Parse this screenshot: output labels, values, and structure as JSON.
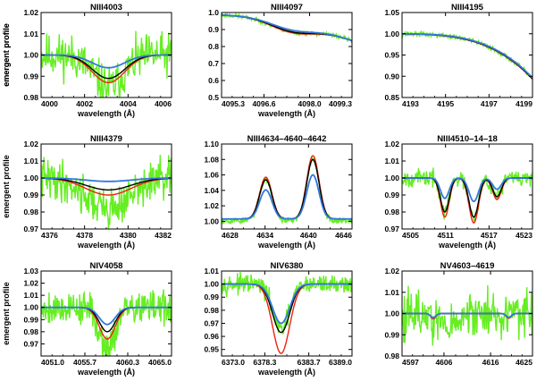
{
  "colors": {
    "observed": "#66ee22",
    "red": "#ee2211",
    "black": "#000000",
    "blue": "#3377dd"
  },
  "chart_data": [
    {
      "type": "line",
      "title": "NIII4003",
      "xlabel": "wavelength (Å)",
      "ylabel": "emergent profile",
      "xlim": [
        4000,
        4006
      ],
      "ylim": [
        0.98,
        1.02
      ],
      "xticks": [
        4000,
        4002,
        4004,
        4006
      ],
      "xtick_labels": [
        "4000",
        "4002",
        "4004",
        "4006"
      ],
      "yticks": [
        0.98,
        0.99,
        1.0,
        1.01,
        1.02
      ],
      "ytick_labels": [
        "0.98",
        "0.99",
        "1.00",
        "1.01",
        "1.02"
      ],
      "model": {
        "kind": "absorption",
        "lines": [
          {
            "center": 4003.1,
            "width": 0.75
          }
        ],
        "depths": {
          "red": 0.013,
          "black": 0.011,
          "blue": 0.006
        }
      },
      "observed": {
        "noise": 0.005,
        "lines": [
          {
            "center": 4003.1,
            "width": 0.7,
            "depth": 0.015
          }
        ],
        "seed": 11
      }
    },
    {
      "type": "line",
      "title": "NIII4097",
      "xlabel": "wavelength (Å)",
      "ylabel": "emergent profile",
      "xlim": [
        4095.3,
        4099.3
      ],
      "ylim": [
        0.5,
        1.0
      ],
      "xticks": [
        4095.3,
        4096.6,
        4098.0,
        4099.3
      ],
      "xtick_labels": [
        "4095.3",
        "4096.6",
        "4098.0",
        "4099.3"
      ],
      "yticks": [
        0.5,
        0.6,
        0.7,
        0.8,
        0.9,
        1.0
      ],
      "ytick_labels": [
        "0.5",
        "0.6",
        "0.7",
        "0.8",
        "0.9",
        "1.0"
      ],
      "model": {
        "kind": "wing",
        "start": 0.985,
        "end": 0.835,
        "dip_center": 4097.45,
        "dip_width": 0.65,
        "depths": {
          "red": 0.055,
          "black": 0.05,
          "blue": 0.04
        }
      },
      "observed": {
        "noise": 0.006,
        "lines": [
          {
            "center": 4097.45,
            "width": 0.6,
            "depth": 0.06
          }
        ],
        "seed": 23
      }
    },
    {
      "type": "line",
      "title": "NIII4195",
      "xlabel": "",
      "ylabel": "",
      "xlim": [
        4193,
        4199
      ],
      "ylim": [
        0.85,
        1.05
      ],
      "xticks": [
        4193,
        4195,
        4197,
        4199
      ],
      "xtick_labels": [
        "4193",
        "4195",
        "4197",
        "4199"
      ],
      "yticks": [
        0.85,
        0.9,
        0.95,
        1.0,
        1.05
      ],
      "ytick_labels": [
        "0.85",
        "0.90",
        "0.95",
        "1.00",
        "1.05"
      ],
      "model": {
        "kind": "edge",
        "start": 1.0,
        "end": 0.9,
        "offsets": {
          "red": -0.003,
          "black": -0.002,
          "blue": 0.0
        }
      },
      "observed": {
        "noise": 0.003,
        "lines": [],
        "seed": 37
      }
    },
    {
      "type": "line",
      "title": "NIII4379",
      "xlabel": "wavelength (Å)",
      "ylabel": "emergent profile",
      "xlim": [
        4376,
        4382
      ],
      "ylim": [
        0.97,
        1.02
      ],
      "xticks": [
        4376,
        4378,
        4380,
        4382
      ],
      "xtick_labels": [
        "4376",
        "4378",
        "4380",
        "4382"
      ],
      "yticks": [
        0.97,
        0.98,
        0.99,
        1.0,
        1.01,
        1.02
      ],
      "ytick_labels": [
        "0.97",
        "0.98",
        "0.99",
        "1.00",
        "1.01",
        "1.02"
      ],
      "model": {
        "kind": "absorption",
        "lines": [
          {
            "center": 4379.1,
            "width": 1.05
          }
        ],
        "depths": {
          "red": 0.01,
          "black": 0.007,
          "blue": 0.002
        }
      },
      "observed": {
        "noise": 0.006,
        "lines": [
          {
            "center": 4379.1,
            "width": 1.0,
            "depth": 0.018
          }
        ],
        "seed": 41
      }
    },
    {
      "type": "line",
      "title": "NIII4634–4640–4642",
      "xlabel": "wavelength (Å)",
      "ylabel": "",
      "xlim": [
        4628,
        4646
      ],
      "ylim": [
        0.99,
        1.1
      ],
      "xticks": [
        4628,
        4634,
        4640,
        4646
      ],
      "xtick_labels": [
        "4628",
        "4634",
        "4640",
        "4646"
      ],
      "yticks": [
        1.0,
        1.02,
        1.04,
        1.06,
        1.08,
        1.1
      ],
      "ytick_labels": [
        "1.00",
        "1.02",
        "1.04",
        "1.06",
        "1.08",
        "1.10"
      ],
      "model": {
        "kind": "emission",
        "lines": [
          {
            "center": 4634.1,
            "width": 0.85,
            "scale": 0.66
          },
          {
            "center": 4640.6,
            "width": 0.85,
            "scale": 1.0
          }
        ],
        "continuum": 1.003,
        "heights": {
          "red": 0.082,
          "black": 0.077,
          "blue": 0.057
        }
      },
      "observed": {
        "noise": 0.002,
        "lines": [
          {
            "center": 4634.1,
            "width": 0.85,
            "depth": -0.053
          },
          {
            "center": 4640.6,
            "width": 0.85,
            "depth": -0.08
          }
        ],
        "seed": 53
      }
    },
    {
      "type": "line",
      "title": "NIII4510–14–18",
      "xlabel": "wavelength (Å)",
      "ylabel": "",
      "xlim": [
        4505,
        4523
      ],
      "ylim": [
        0.97,
        1.02
      ],
      "xticks": [
        4505,
        4511,
        4517,
        4523
      ],
      "xtick_labels": [
        "4505",
        "4511",
        "4517",
        "4523"
      ],
      "yticks": [
        0.97,
        0.98,
        0.99,
        1.0,
        1.01,
        1.02
      ],
      "ytick_labels": [
        "0.97",
        "0.98",
        "0.99",
        "1.00",
        "1.01",
        "1.02"
      ],
      "model": {
        "kind": "absorption",
        "lines": [
          {
            "center": 4510.9,
            "width": 0.6,
            "scale": 1.0
          },
          {
            "center": 4514.9,
            "width": 0.65,
            "scale": 1.15
          },
          {
            "center": 4518.1,
            "width": 0.6,
            "scale": 0.55
          }
        ],
        "depths": {
          "red": 0.023,
          "black": 0.02,
          "blue": 0.012
        }
      },
      "observed": {
        "noise": 0.0025,
        "lines": [
          {
            "center": 4510.9,
            "width": 0.6,
            "depth": 0.02
          },
          {
            "center": 4514.9,
            "width": 0.65,
            "depth": 0.022
          },
          {
            "center": 4518.1,
            "width": 0.6,
            "depth": 0.01
          }
        ],
        "seed": 67
      }
    },
    {
      "type": "line",
      "title": "NIV4058",
      "xlabel": "wavelength (Å)",
      "ylabel": "emergent profile",
      "xlim": [
        4051.0,
        4065.0
      ],
      "ylim": [
        0.96,
        1.03
      ],
      "xticks": [
        4051.0,
        4055.7,
        4060.3,
        4065.0
      ],
      "xtick_labels": [
        "4051.0",
        "4055.7",
        "4060.3",
        "4065.0"
      ],
      "yticks": [
        0.97,
        0.98,
        0.99,
        1.0,
        1.01,
        1.02,
        1.03
      ],
      "ytick_labels": [
        "0.97",
        "0.98",
        "0.99",
        "1.00",
        "1.01",
        "1.02",
        "1.03"
      ],
      "model": {
        "kind": "absorption",
        "lines": [
          {
            "center": 4058.1,
            "width": 0.85
          }
        ],
        "depths": {
          "red": 0.026,
          "black": 0.02,
          "blue": 0.014
        }
      },
      "observed": {
        "noise": 0.007,
        "lines": [
          {
            "center": 4058.1,
            "width": 0.85,
            "depth": 0.032
          }
        ],
        "seed": 79
      }
    },
    {
      "type": "line",
      "title": "NIV6380",
      "xlabel": "wavelength (Å)",
      "ylabel": "",
      "xlim": [
        6373.0,
        6389.0
      ],
      "ylim": [
        0.945,
        1.01
      ],
      "xticks": [
        6373.0,
        6378.3,
        6383.7,
        6389.0
      ],
      "xtick_labels": [
        "6373.0",
        "6378.3",
        "6383.7",
        "6389.0"
      ],
      "yticks": [
        0.95,
        0.96,
        0.97,
        0.98,
        0.99,
        1.0,
        1.01
      ],
      "ytick_labels": [
        "0.95",
        "0.96",
        "0.97",
        "0.98",
        "0.99",
        "1.00",
        "1.01"
      ],
      "model": {
        "kind": "absorption",
        "lines": [
          {
            "center": 6380.3,
            "width": 1.05
          }
        ],
        "depths": {
          "red": 0.053,
          "black": 0.037,
          "blue": 0.03
        }
      },
      "observed": {
        "noise": 0.0035,
        "lines": [
          {
            "center": 6380.3,
            "width": 1.0,
            "depth": 0.035
          }
        ],
        "seed": 97
      }
    },
    {
      "type": "line",
      "title": "NV4603–4619",
      "xlabel": "",
      "ylabel": "",
      "xlim": [
        4597,
        4625
      ],
      "ylim": [
        0.98,
        1.02
      ],
      "xticks": [
        4597,
        4606,
        4616,
        4625
      ],
      "xtick_labels": [
        "4597",
        "4606",
        "4616",
        "4625"
      ],
      "yticks": [
        0.98,
        0.99,
        1.0,
        1.01,
        1.02
      ],
      "ytick_labels": [
        "0.98",
        "0.99",
        "1.00",
        "1.01",
        "1.02"
      ],
      "model": {
        "kind": "absorption",
        "lines": [
          {
            "center": 4603.7,
            "width": 0.55,
            "scale": 1.0
          },
          {
            "center": 4619.9,
            "width": 0.55,
            "scale": 0.9
          }
        ],
        "depths": {
          "red": 0.0025,
          "black": 0.002,
          "blue": 0.002
        }
      },
      "observed": {
        "noise": 0.0055,
        "lines": [
          {
            "center": 4607,
            "width": 2.5,
            "depth": 0.006
          }
        ],
        "seed": 113
      }
    }
  ]
}
